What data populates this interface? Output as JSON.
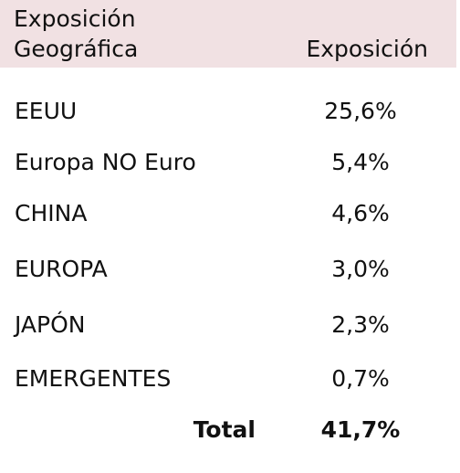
{
  "header": {
    "category_line1": "Exposición",
    "category_line2": "Geográfica",
    "value_label": "Exposición"
  },
  "rows": [
    {
      "label": "EEUU",
      "value": "25,6%"
    },
    {
      "label": "Europa NO Euro",
      "value": "5,4%"
    },
    {
      "label": "CHINA",
      "value": "4,6%"
    },
    {
      "label": "EUROPA",
      "value": "3,0%"
    },
    {
      "label": "JAPÓN",
      "value": "2,3%"
    },
    {
      "label": "EMERGENTES",
      "value": "0,7%"
    }
  ],
  "total": {
    "label": "Total",
    "value": "41,7%"
  },
  "colors": {
    "header_background": "#f1e1e3",
    "text": "#111111"
  }
}
